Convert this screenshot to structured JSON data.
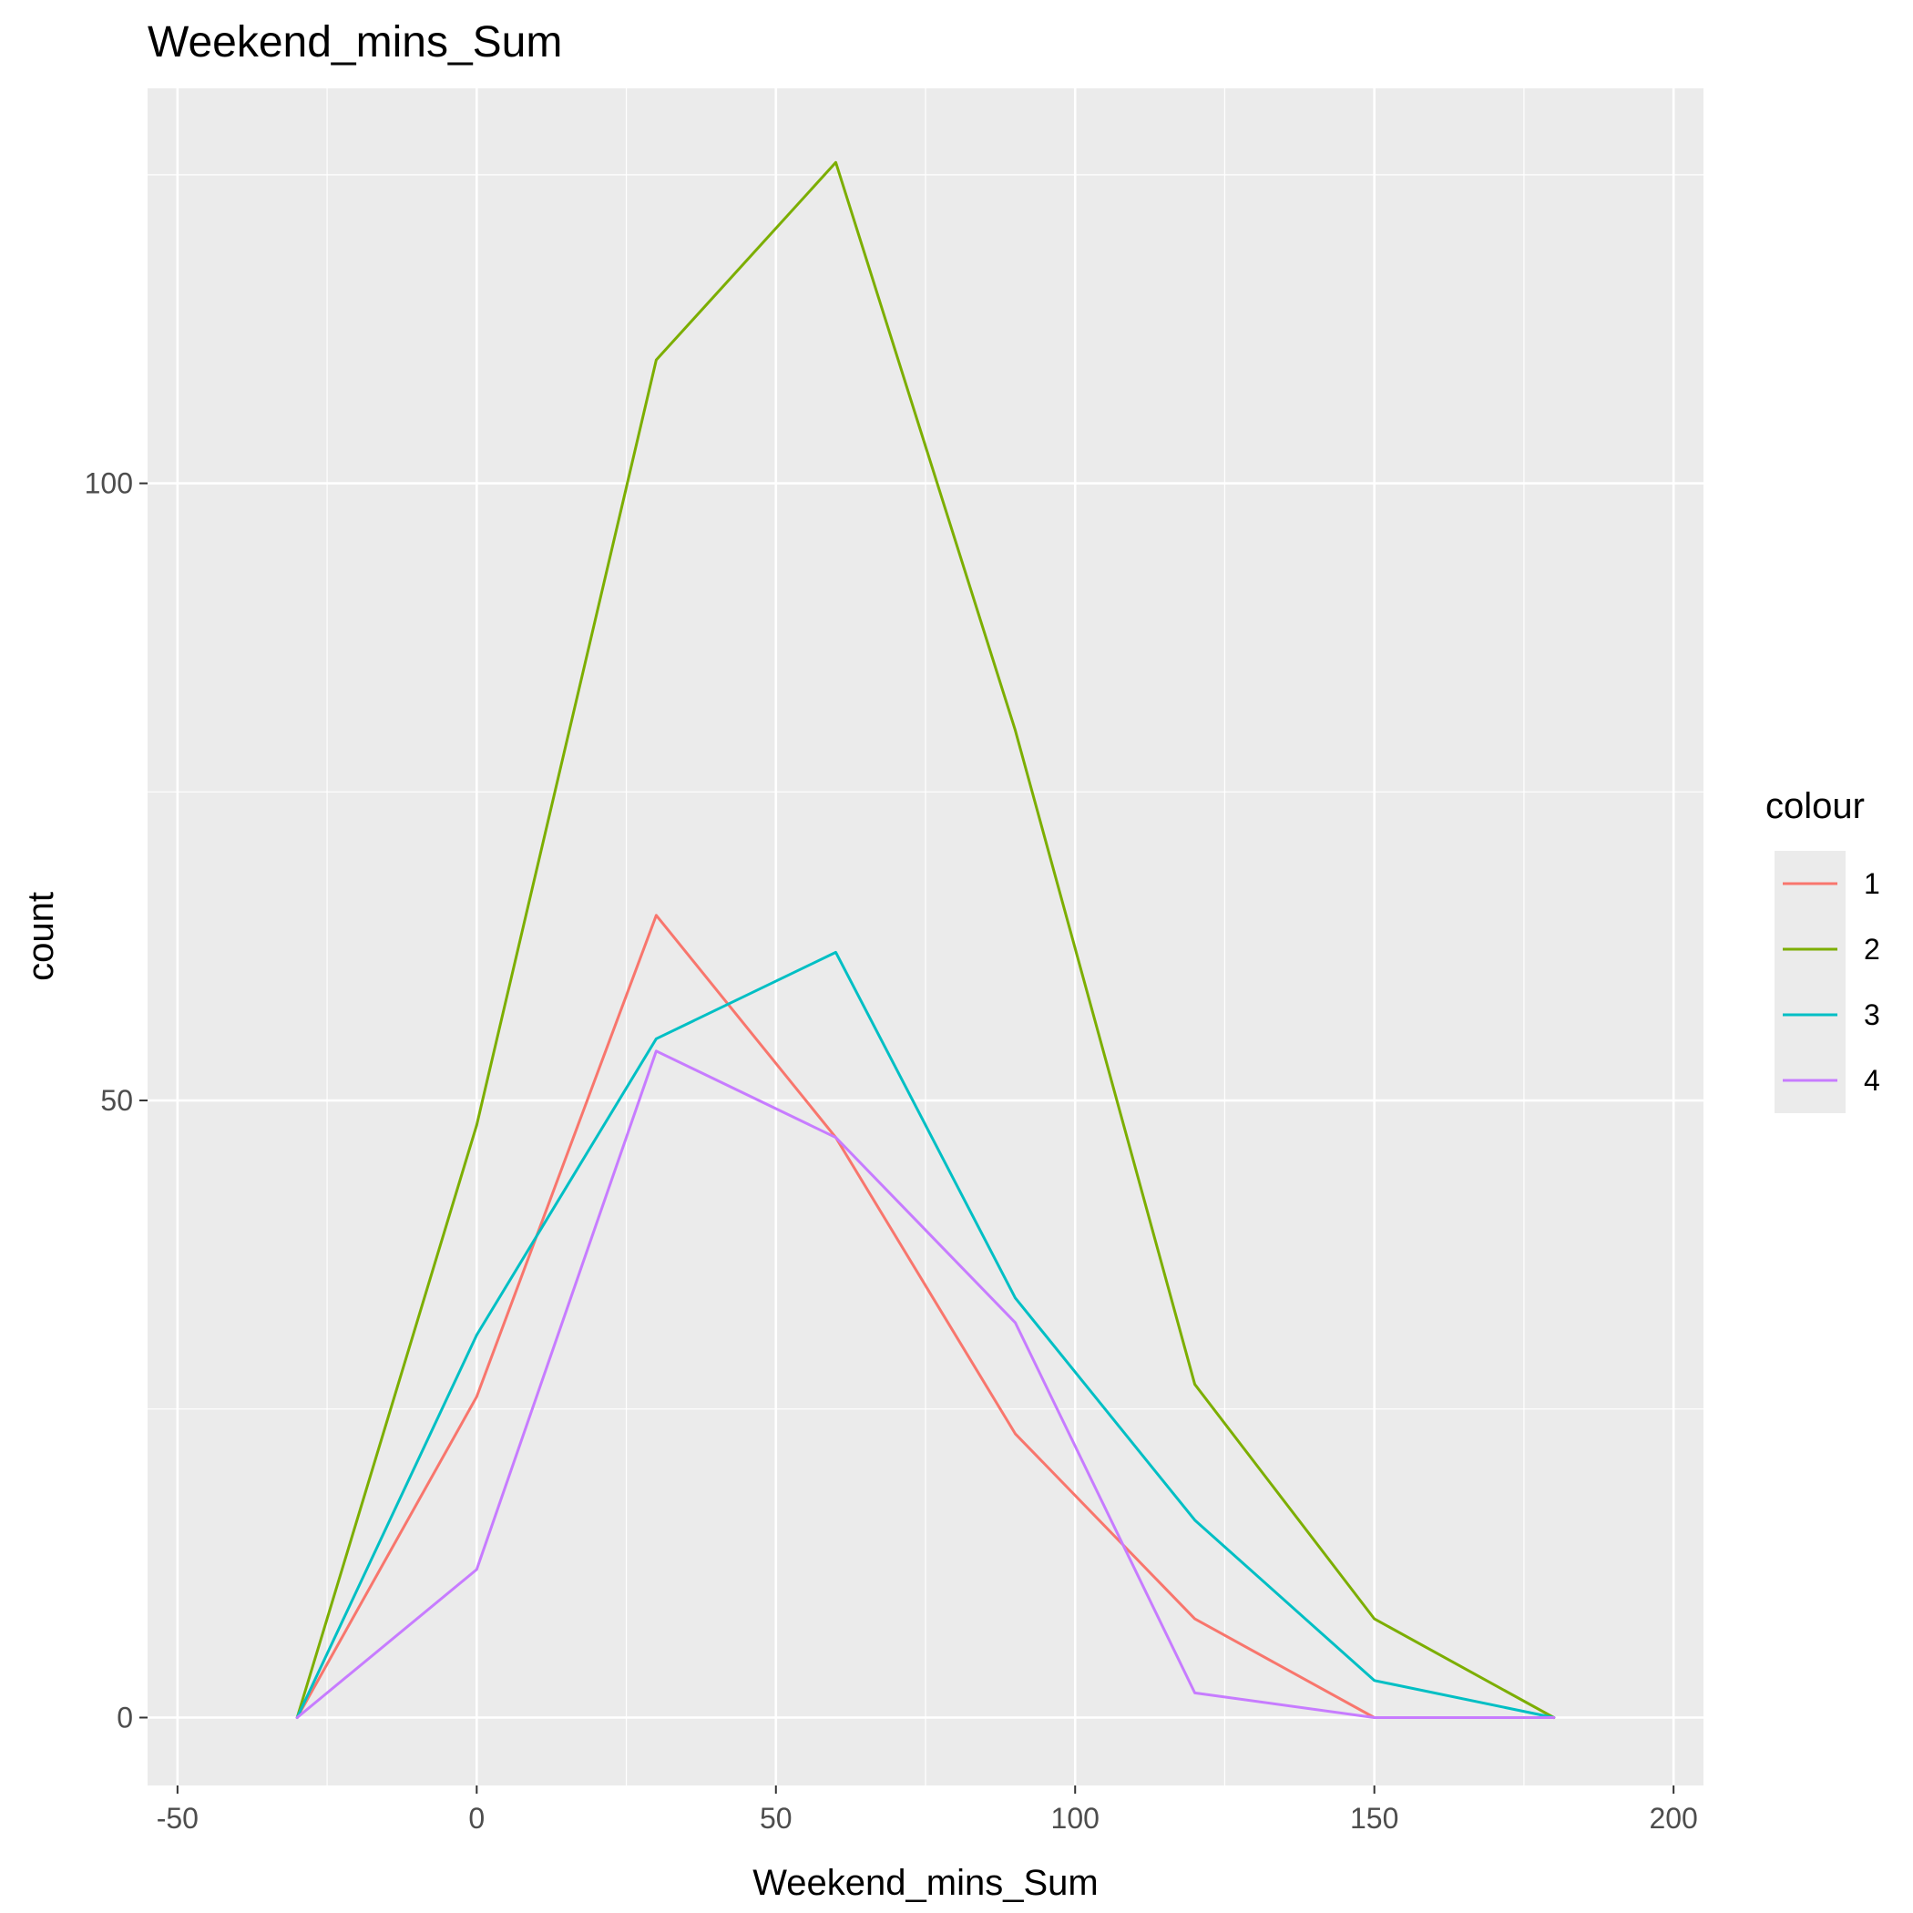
{
  "chart_data": {
    "type": "line",
    "title": "Weekend_mins_Sum",
    "xlabel": "Weekend_mins_Sum",
    "ylabel": "count",
    "xlim": [
      -55,
      205
    ],
    "ylim": [
      -5.5,
      132
    ],
    "x_ticks": [
      -50,
      0,
      50,
      100,
      150,
      200
    ],
    "x_tick_labels": [
      "-50",
      "0",
      "50",
      "100",
      "150",
      "200"
    ],
    "y_ticks": [
      0,
      50,
      100
    ],
    "y_tick_labels": [
      "0",
      "50",
      "100"
    ],
    "grid": true,
    "legend": {
      "title": "colour",
      "position": "right"
    },
    "x": [
      -30,
      0,
      30,
      60,
      90,
      120,
      150,
      180
    ],
    "series": [
      {
        "name": "1",
        "color": "#F8766D",
        "values": [
          0,
          26,
          65,
          47,
          23,
          8,
          0,
          0
        ]
      },
      {
        "name": "2",
        "color": "#7CAE00",
        "values": [
          0,
          48,
          110,
          126,
          80,
          27,
          8,
          0
        ]
      },
      {
        "name": "3",
        "color": "#00BFC4",
        "values": [
          0,
          31,
          55,
          62,
          34,
          16,
          3,
          0
        ]
      },
      {
        "name": "4",
        "color": "#C77CFF",
        "values": [
          0,
          12,
          54,
          47,
          32,
          2,
          0,
          0
        ]
      }
    ]
  }
}
